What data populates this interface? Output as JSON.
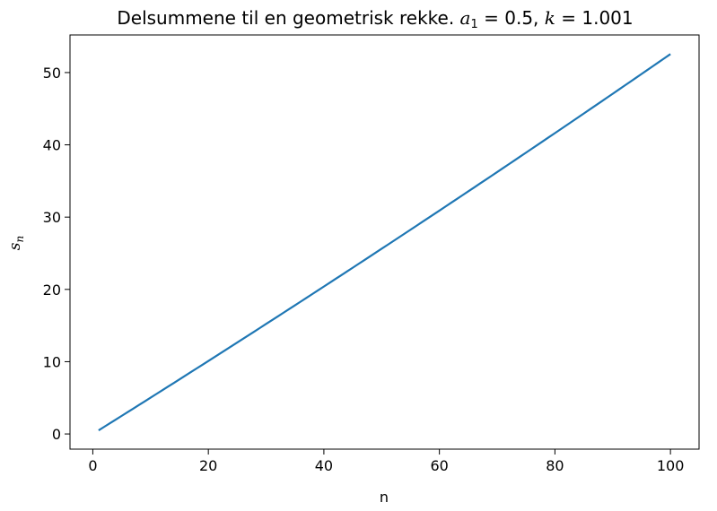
{
  "chart_data": {
    "type": "line",
    "title": {
      "prefix": "Delsummene til en geometrisk rekke. ",
      "a_symbol": "a",
      "a_subscript": "1",
      "a_value": " = 0.5, ",
      "k_symbol": "k",
      "k_value": " = 1.001"
    },
    "xlabel": "n",
    "ylabel": {
      "symbol": "s",
      "subscript": "n"
    },
    "xlim": [
      -3.95,
      104.95
    ],
    "ylim": [
      -2.1,
      55.2
    ],
    "xticks": [
      20,
      40,
      60,
      80,
      100
    ],
    "yticks": [
      0,
      10,
      20,
      30,
      40,
      50
    ],
    "grid": false,
    "series": [
      {
        "color": "#1f77b4",
        "a1": 0.5,
        "k": 1.001,
        "n_start": 1,
        "n_end": 100
      }
    ],
    "x0_tick": 0,
    "y_extra_tick": 0
  }
}
